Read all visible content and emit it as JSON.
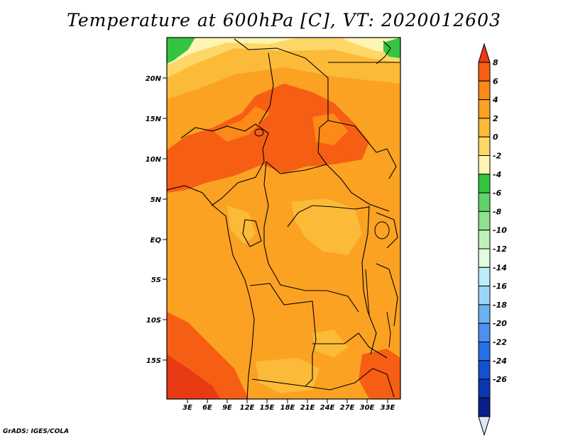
{
  "title": "Temperature at 600hPa [C], VT: 2020012603",
  "credit": "GrADS: IGES/COLA",
  "map": {
    "lat_labels": [
      "20N",
      "15N",
      "10N",
      "5N",
      "EQ",
      "5S",
      "10S",
      "15S"
    ],
    "lon_labels": [
      "3E",
      "6E",
      "9E",
      "12E",
      "15E",
      "18E",
      "21E",
      "24E",
      "27E",
      "30E",
      "33E"
    ]
  },
  "colorbar": {
    "labels": [
      "8",
      "6",
      "4",
      "2",
      "0",
      "-2",
      "-4",
      "-6",
      "-8",
      "-10",
      "-12",
      "-14",
      "-16",
      "-18",
      "-20",
      "-22",
      "-24",
      "-26"
    ],
    "colors": [
      "#e83a14",
      "#f65e14",
      "#fb8a18",
      "#fba222",
      "#fbbb38",
      "#fed768",
      "#fff5b2",
      "#33c541",
      "#5fd367",
      "#91e08f",
      "#bff2b9",
      "#e1fcde",
      "#bcebfa",
      "#99d7f9",
      "#6db2f0",
      "#4f8ff0",
      "#2870e8",
      "#1450d0",
      "#0a37b4",
      "#0a1e8c",
      "#e0e4f8"
    ]
  },
  "palette": {
    "orange_main": "#fba222",
    "orange_dark": "#f65e14",
    "red": "#e83a14",
    "yellow_light": "#fed768",
    "green": "#33c541"
  }
}
